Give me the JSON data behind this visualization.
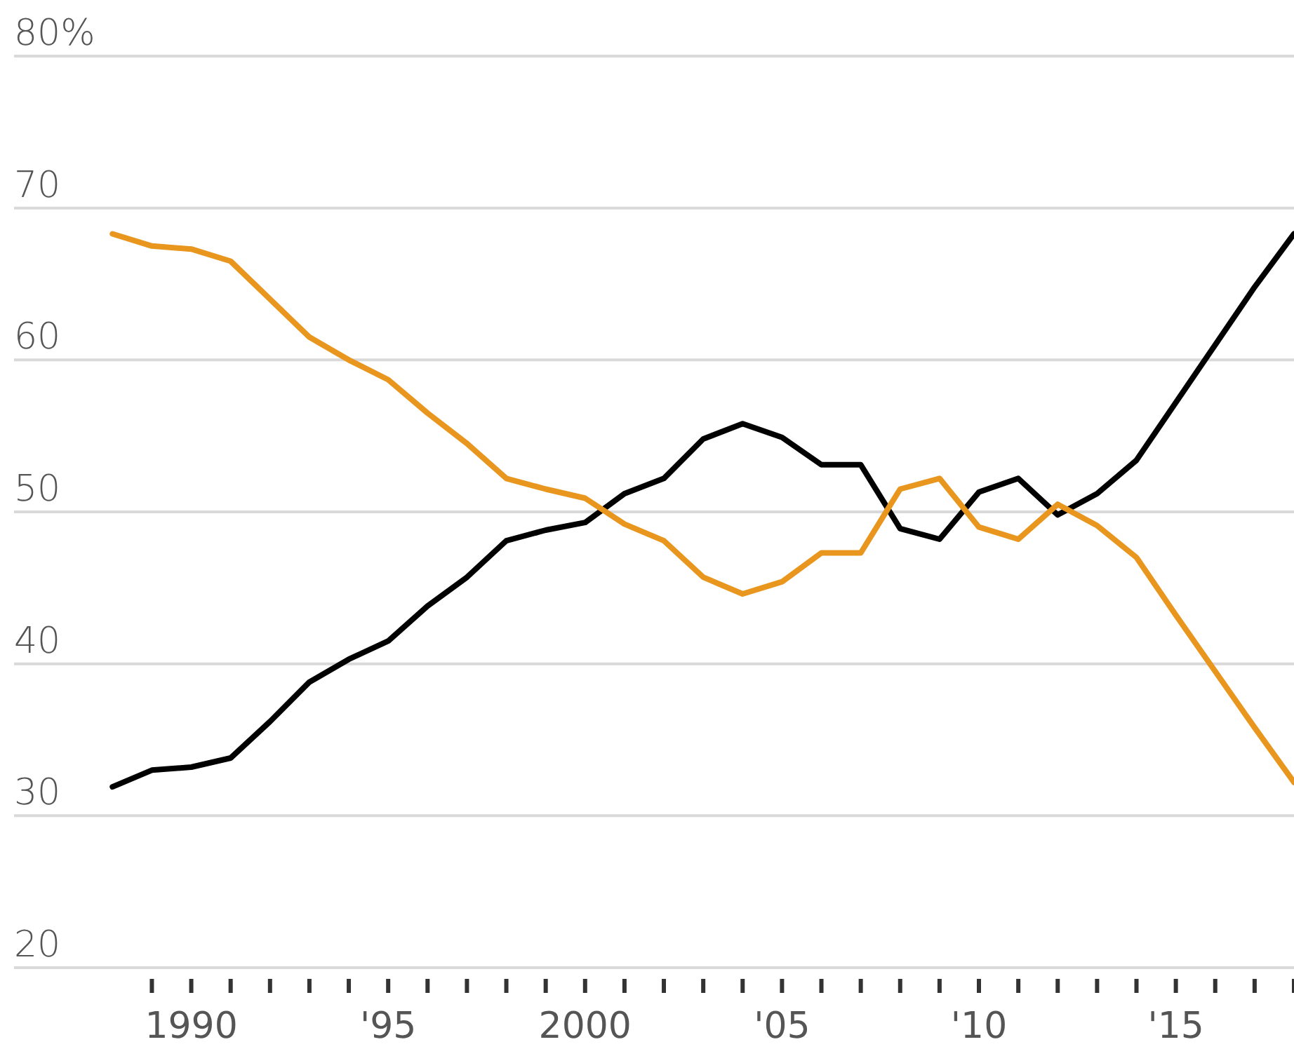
{
  "chart_data": {
    "type": "line",
    "x": [
      1988,
      1989,
      1990,
      1991,
      1992,
      1993,
      1994,
      1995,
      1996,
      1997,
      1998,
      1999,
      2000,
      2001,
      2002,
      2003,
      2004,
      2005,
      2006,
      2007,
      2008,
      2009,
      2010,
      2011,
      2012,
      2013,
      2014,
      2015,
      2016,
      2017,
      2018
    ],
    "series": [
      {
        "color": "#000000",
        "values": [
          31.9,
          33,
          33.2,
          33.8,
          36.2,
          38.8,
          40.3,
          41.5,
          43.8,
          45.7,
          48.1,
          48.8,
          49.3,
          51.2,
          52.2,
          54.8,
          55.8,
          54.9,
          53.1,
          53.1,
          48.9,
          48.2,
          51.3,
          52.2,
          49.8,
          51.2,
          53.4,
          57.2,
          61,
          64.8,
          68.3
        ]
      },
      {
        "color": "#e8961e",
        "values": [
          68.3,
          67.5,
          67.3,
          66.5,
          64,
          61.5,
          60,
          58.7,
          56.5,
          54.5,
          52.2,
          51.5,
          50.9,
          49.2,
          48.1,
          45.7,
          44.6,
          45.4,
          47.3,
          47.3,
          51.5,
          52.2,
          49,
          48.2,
          50.5,
          49.1,
          47,
          43.2,
          39.5,
          35.8,
          32.2
        ]
      }
    ],
    "xlim": [
      1985.5,
      2018
    ],
    "xticks": [
      {
        "value": 1989,
        "label": null
      },
      {
        "value": 1990,
        "label": "1990"
      },
      {
        "value": 1991,
        "label": null
      },
      {
        "value": 1992,
        "label": null
      },
      {
        "value": 1993,
        "label": null
      },
      {
        "value": 1994,
        "label": null
      },
      {
        "value": 1995,
        "label": "'95"
      },
      {
        "value": 1996,
        "label": null
      },
      {
        "value": 1997,
        "label": null
      },
      {
        "value": 1998,
        "label": null
      },
      {
        "value": 1999,
        "label": null
      },
      {
        "value": 2000,
        "label": "2000"
      },
      {
        "value": 2001,
        "label": null
      },
      {
        "value": 2002,
        "label": null
      },
      {
        "value": 2003,
        "label": null
      },
      {
        "value": 2004,
        "label": null
      },
      {
        "value": 2005,
        "label": "'05"
      },
      {
        "value": 2006,
        "label": null
      },
      {
        "value": 2007,
        "label": null
      },
      {
        "value": 2008,
        "label": null
      },
      {
        "value": 2009,
        "label": null
      },
      {
        "value": 2010,
        "label": "'10"
      },
      {
        "value": 2011,
        "label": null
      },
      {
        "value": 2012,
        "label": null
      },
      {
        "value": 2013,
        "label": null
      },
      {
        "value": 2014,
        "label": null
      },
      {
        "value": 2015,
        "label": "'15"
      },
      {
        "value": 2016,
        "label": null
      },
      {
        "value": 2017,
        "label": null
      },
      {
        "value": 2018,
        "label": null
      }
    ],
    "ylim": [
      20,
      80
    ],
    "yticks": [
      20,
      30,
      40,
      50,
      60,
      {
        "value": 80,
        "label": "80%"
      },
      70
    ],
    "grid": "y",
    "line_style": "solid",
    "marker": "none"
  }
}
